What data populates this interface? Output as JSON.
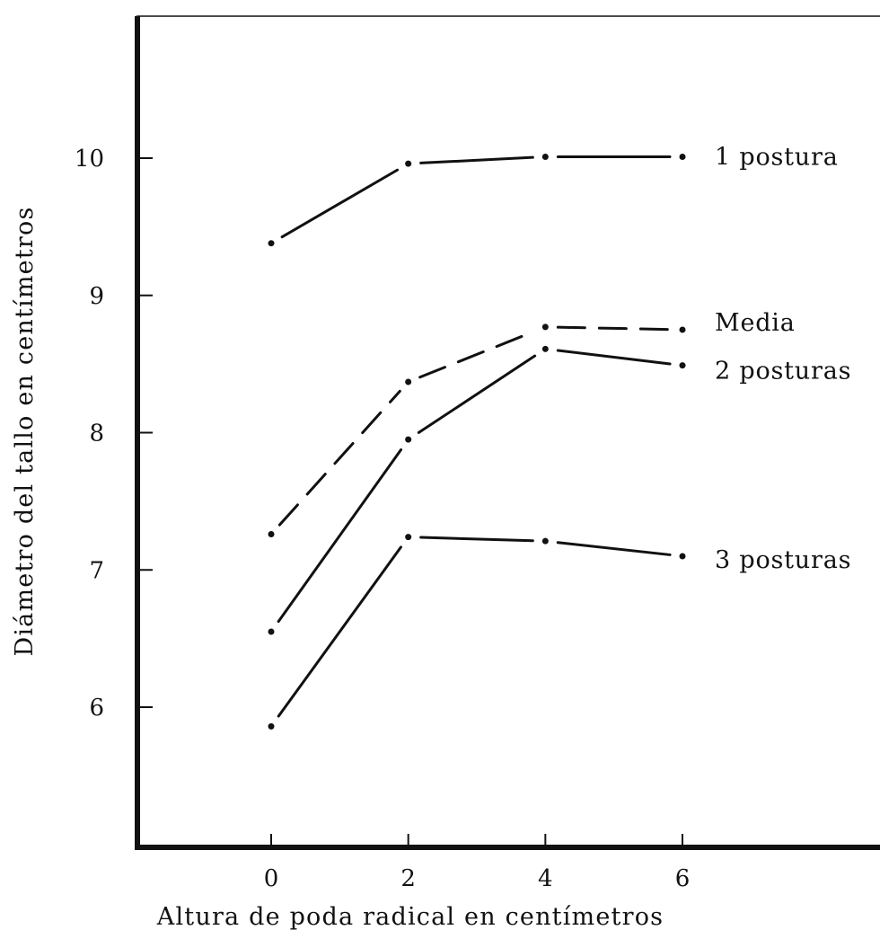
{
  "chart_data": {
    "type": "line",
    "title": "",
    "xlabel": "Altura de poda radical en centímetros",
    "ylabel": "Diámetro del tallo en centímetros",
    "x": [
      0,
      2,
      4,
      6
    ],
    "xticks": [
      "0",
      "2",
      "4",
      "6"
    ],
    "yticks": [
      "6",
      "7",
      "8",
      "9",
      "10"
    ],
    "xlim": [
      -1.9,
      8.2
    ],
    "ylim": [
      5.05,
      11.1
    ],
    "grid": false,
    "legend": "labels at line ends (right)",
    "series": [
      {
        "name": "1 postura",
        "values": [
          9.38,
          9.96,
          10.01,
          10.01
        ],
        "style": "dash-dot"
      },
      {
        "name": "Media",
        "values": [
          7.26,
          8.37,
          8.77,
          8.75
        ],
        "style": "dashed"
      },
      {
        "name": "2 posturas",
        "values": [
          6.55,
          7.95,
          8.61,
          8.49
        ],
        "style": "solid"
      },
      {
        "name": "3 posturas",
        "values": [
          5.86,
          7.24,
          7.21,
          7.1
        ],
        "style": "solid"
      }
    ]
  }
}
